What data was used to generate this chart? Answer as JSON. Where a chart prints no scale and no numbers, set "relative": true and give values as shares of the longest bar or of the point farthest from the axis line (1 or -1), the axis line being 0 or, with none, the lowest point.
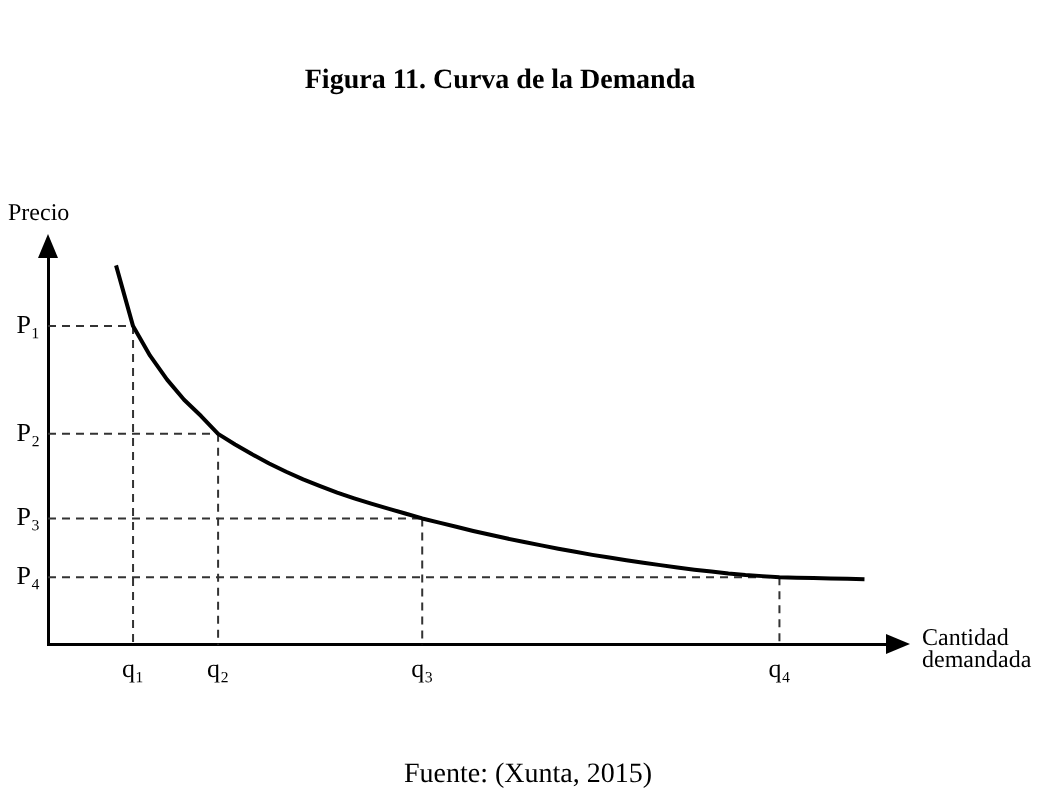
{
  "chart_data": {
    "type": "line",
    "title": "Figura 11. Curva de la Demanda",
    "xlabel": "Cantidad demandada",
    "ylabel": "Precio",
    "annotations": [
      "Fuente: (Xunta, 2015)"
    ],
    "ref_lines": [
      {
        "axis": "y",
        "value": 0.84,
        "label": "P₁",
        "color": "#333333",
        "line_style": "dashed"
      },
      {
        "axis": "y",
        "value": 0.556,
        "label": "P₂",
        "color": "#333333",
        "line_style": "dashed"
      },
      {
        "axis": "y",
        "value": 0.333,
        "label": "P₃",
        "color": "#333333",
        "line_style": "dashed"
      },
      {
        "axis": "y",
        "value": 0.178,
        "label": "P₄",
        "color": "#333333",
        "line_style": "dashed"
      },
      {
        "axis": "x",
        "value": "q₁",
        "color": "#333333",
        "line_style": "dashed"
      },
      {
        "axis": "x",
        "value": "q₂",
        "color": "#333333",
        "line_style": "dashed"
      },
      {
        "axis": "x",
        "value": "q₃",
        "color": "#333333",
        "line_style": "dashed"
      },
      {
        "axis": "x",
        "value": "q₄",
        "color": "#333333",
        "line_style": "dashed"
      }
    ],
    "relative": true,
    "categories": [
      null,
      "q₁",
      null,
      null,
      null,
      null,
      "q₂",
      null,
      null,
      null,
      null,
      null,
      null,
      null,
      null,
      null,
      null,
      null,
      "q₃",
      null,
      null,
      null,
      null,
      null,
      null,
      null,
      null,
      null,
      null,
      null,
      null,
      null,
      null,
      null,
      null,
      null,
      null,
      null,
      null,
      "q₄",
      null,
      null,
      null,
      null,
      null
    ],
    "series": [
      {
        "color": "#000000",
        "values": [
          1,
          0.84,
          0.762,
          0.699,
          0.646,
          0.603,
          0.556,
          0.528,
          0.502,
          0.478,
          0.456,
          0.436,
          0.418,
          0.401,
          0.386,
          0.372,
          0.359,
          0.346,
          0.333,
          0.322,
          0.311,
          0.3,
          0.29,
          0.28,
          0.271,
          0.262,
          0.253,
          0.245,
          0.237,
          0.23,
          0.223,
          0.216,
          0.21,
          0.204,
          0.198,
          0.193,
          0.188,
          0.184,
          0.181,
          0.178,
          0.177,
          0.176,
          0.175,
          0.174,
          0.173
        ]
      }
    ],
    "legend": false,
    "marker": "none",
    "line_style": "solid"
  }
}
